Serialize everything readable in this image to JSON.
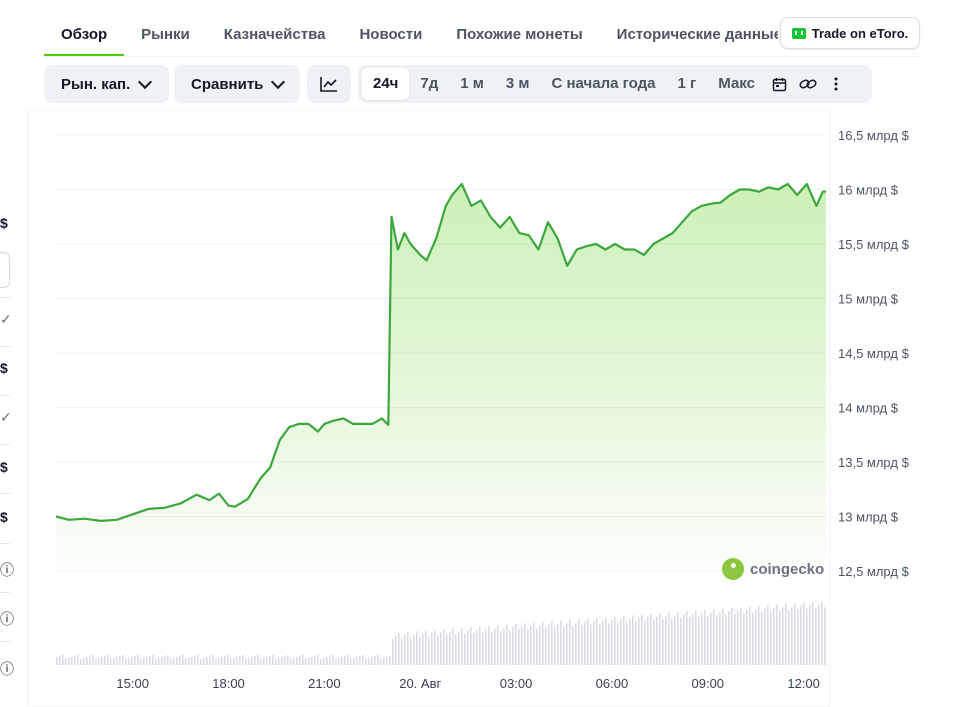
{
  "tabs": [
    {
      "label": "Обзор",
      "active": true
    },
    {
      "label": "Рынки",
      "active": false
    },
    {
      "label": "Казначейства",
      "active": false
    },
    {
      "label": "Новости",
      "active": false
    },
    {
      "label": "Похожие монеты",
      "active": false
    },
    {
      "label": "Исторические данные",
      "active": false
    }
  ],
  "etoro_button": {
    "label": "Trade on eToro.",
    "icon": "etoro-logo-icon",
    "color": "#13c636"
  },
  "toolbar": {
    "metric_dropdown": "Рын. кап.",
    "compare_dropdown": "Сравнить",
    "chart_type_icon": "line-chart-icon",
    "ranges": [
      "24ч",
      "7д",
      "1 м",
      "3 м",
      "С начала года",
      "1 г",
      "Макс"
    ],
    "selected_range": "24ч",
    "calendar_icon": "calendar-icon",
    "link_icon": "link-icon",
    "more_icon": "more-vertical-icon"
  },
  "left_edge": {
    "glyphs": [
      "$",
      "✓",
      "$",
      "✓",
      "$",
      "$",
      "ⓘ",
      "ⓘ",
      "ⓘ"
    ]
  },
  "watermark": "coingecko",
  "colors": {
    "accent": "#4bcc00",
    "line": "#3da63d",
    "area": "#c8ebc8",
    "volume": "#d9dde3"
  },
  "chart_data": {
    "type": "area",
    "title": "",
    "xlabel": "",
    "ylabel": "",
    "ylim": [
      12.5,
      16.5
    ],
    "y_ticks": [
      "16,5 млрд $",
      "16 млрд $",
      "15,5 млрд $",
      "15 млрд $",
      "14,5 млрд $",
      "14 млрд $",
      "13,5 млрд $",
      "13 млрд $",
      "12,5 млрд $"
    ],
    "y_tick_values": [
      16.5,
      16,
      15.5,
      15,
      14.5,
      14,
      13.5,
      13,
      12.5
    ],
    "x_ticks": [
      "15:00",
      "18:00",
      "21:00",
      "20. Авг",
      "03:00",
      "06:00",
      "09:00",
      "12:00"
    ],
    "x_tick_hours": [
      15,
      18,
      21,
      24,
      27,
      30,
      33,
      36
    ],
    "grid": true,
    "series": [
      {
        "x_hours": [
          12.6,
          13.0,
          13.5,
          14.0,
          14.5,
          15.0,
          15.5,
          16.0,
          16.5,
          17.0,
          17.4,
          17.7,
          18.0,
          18.2,
          18.6,
          19.0,
          19.3,
          19.6,
          19.9,
          20.2,
          20.5,
          20.8,
          21.0,
          21.3,
          21.6,
          21.9,
          22.2,
          22.5,
          22.8,
          23.0,
          23.1,
          23.3,
          23.5,
          23.7,
          24.0,
          24.2,
          24.5,
          24.8,
          25.0,
          25.3,
          25.6,
          25.9,
          26.2,
          26.5,
          26.8,
          27.1,
          27.4,
          27.7,
          28.0,
          28.3,
          28.6,
          28.9,
          29.2,
          29.5,
          29.8,
          30.1,
          30.4,
          30.7,
          31.0,
          31.3,
          31.6,
          31.9,
          32.2,
          32.5,
          32.8,
          33.1,
          33.4,
          33.7,
          34.0,
          34.3,
          34.6,
          34.9,
          35.2,
          35.5,
          35.8,
          36.1,
          36.4,
          36.6,
          36.7
        ],
        "values": [
          13.0,
          12.97,
          12.98,
          12.96,
          12.97,
          13.02,
          13.07,
          13.08,
          13.12,
          13.2,
          13.15,
          13.21,
          13.1,
          13.09,
          13.16,
          13.35,
          13.45,
          13.7,
          13.82,
          13.85,
          13.85,
          13.78,
          13.85,
          13.88,
          13.9,
          13.85,
          13.85,
          13.85,
          13.9,
          13.84,
          15.75,
          15.45,
          15.6,
          15.5,
          15.4,
          15.35,
          15.55,
          15.85,
          15.95,
          16.05,
          15.85,
          15.9,
          15.75,
          15.65,
          15.75,
          15.6,
          15.58,
          15.45,
          15.7,
          15.55,
          15.3,
          15.45,
          15.48,
          15.5,
          15.45,
          15.5,
          15.45,
          15.45,
          15.4,
          15.5,
          15.55,
          15.6,
          15.7,
          15.8,
          15.85,
          15.87,
          15.88,
          15.95,
          16.0,
          16.0,
          15.98,
          16.02,
          16.0,
          16.05,
          15.95,
          16.05,
          15.85,
          15.98,
          15.98
        ]
      }
    ],
    "volume_present": true
  }
}
